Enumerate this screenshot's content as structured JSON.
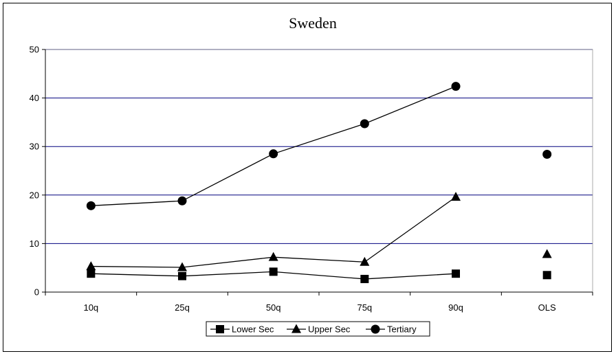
{
  "chart_data": {
    "type": "line",
    "title": "Sweden",
    "categories": [
      "10q",
      "25q",
      "50q",
      "75q",
      "90q",
      "OLS"
    ],
    "ylim": [
      0,
      50
    ],
    "yticks": [
      0,
      10,
      20,
      30,
      40,
      50
    ],
    "grid": true,
    "legend_placement": "bottom",
    "series": [
      {
        "name": "Lower Sec",
        "marker": "square",
        "values": [
          3.8,
          3.3,
          4.2,
          2.7,
          3.8,
          3.5
        ],
        "connected": [
          true,
          true,
          true,
          true,
          true,
          false
        ]
      },
      {
        "name": "Upper Sec",
        "marker": "triangle",
        "values": [
          5.3,
          5.1,
          7.2,
          6.2,
          19.6,
          7.8
        ],
        "connected": [
          true,
          true,
          true,
          true,
          true,
          false
        ]
      },
      {
        "name": "Tertiary",
        "marker": "circle",
        "values": [
          17.8,
          18.8,
          28.5,
          34.7,
          42.4,
          28.4
        ],
        "connected": [
          true,
          true,
          true,
          true,
          true,
          false
        ]
      }
    ],
    "colors": {
      "grid": "#00007f",
      "series": "#000000",
      "axis": "#000000"
    }
  }
}
